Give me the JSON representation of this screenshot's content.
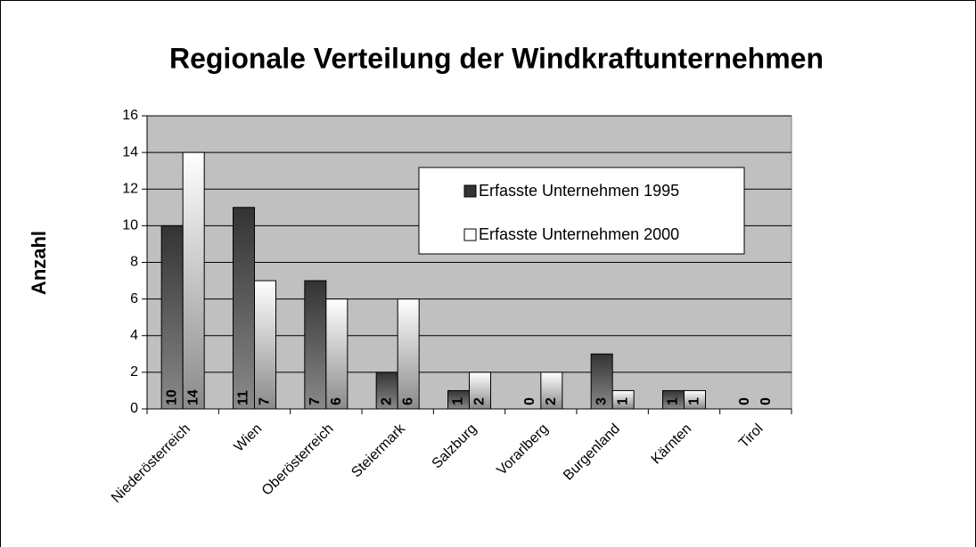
{
  "chart_data": {
    "type": "bar",
    "title": "Regionale Verteilung der Windkraftunternehmen",
    "y_label": "Anzahl",
    "categories": [
      "Niederösterreich",
      "Wien",
      "Oberösterreich",
      "Steiermark",
      "Salzburg",
      "Vorarlberg",
      "Burgenland",
      "Kärnten",
      "Tirol"
    ],
    "series": [
      {
        "name": "Erfasste Unternehmen 1995",
        "color": "#333333",
        "values": [
          10,
          11,
          7,
          2,
          1,
          0,
          3,
          1,
          0
        ]
      },
      {
        "name": "Erfasste Unternehmen 2000",
        "color": "#ffffff",
        "values": [
          14,
          7,
          6,
          6,
          2,
          2,
          1,
          1,
          0
        ]
      }
    ],
    "ylim": [
      0,
      16
    ],
    "yticks": [
      0,
      2,
      4,
      6,
      8,
      10,
      12,
      14,
      16
    ],
    "grid": true,
    "legend": "upper right"
  }
}
